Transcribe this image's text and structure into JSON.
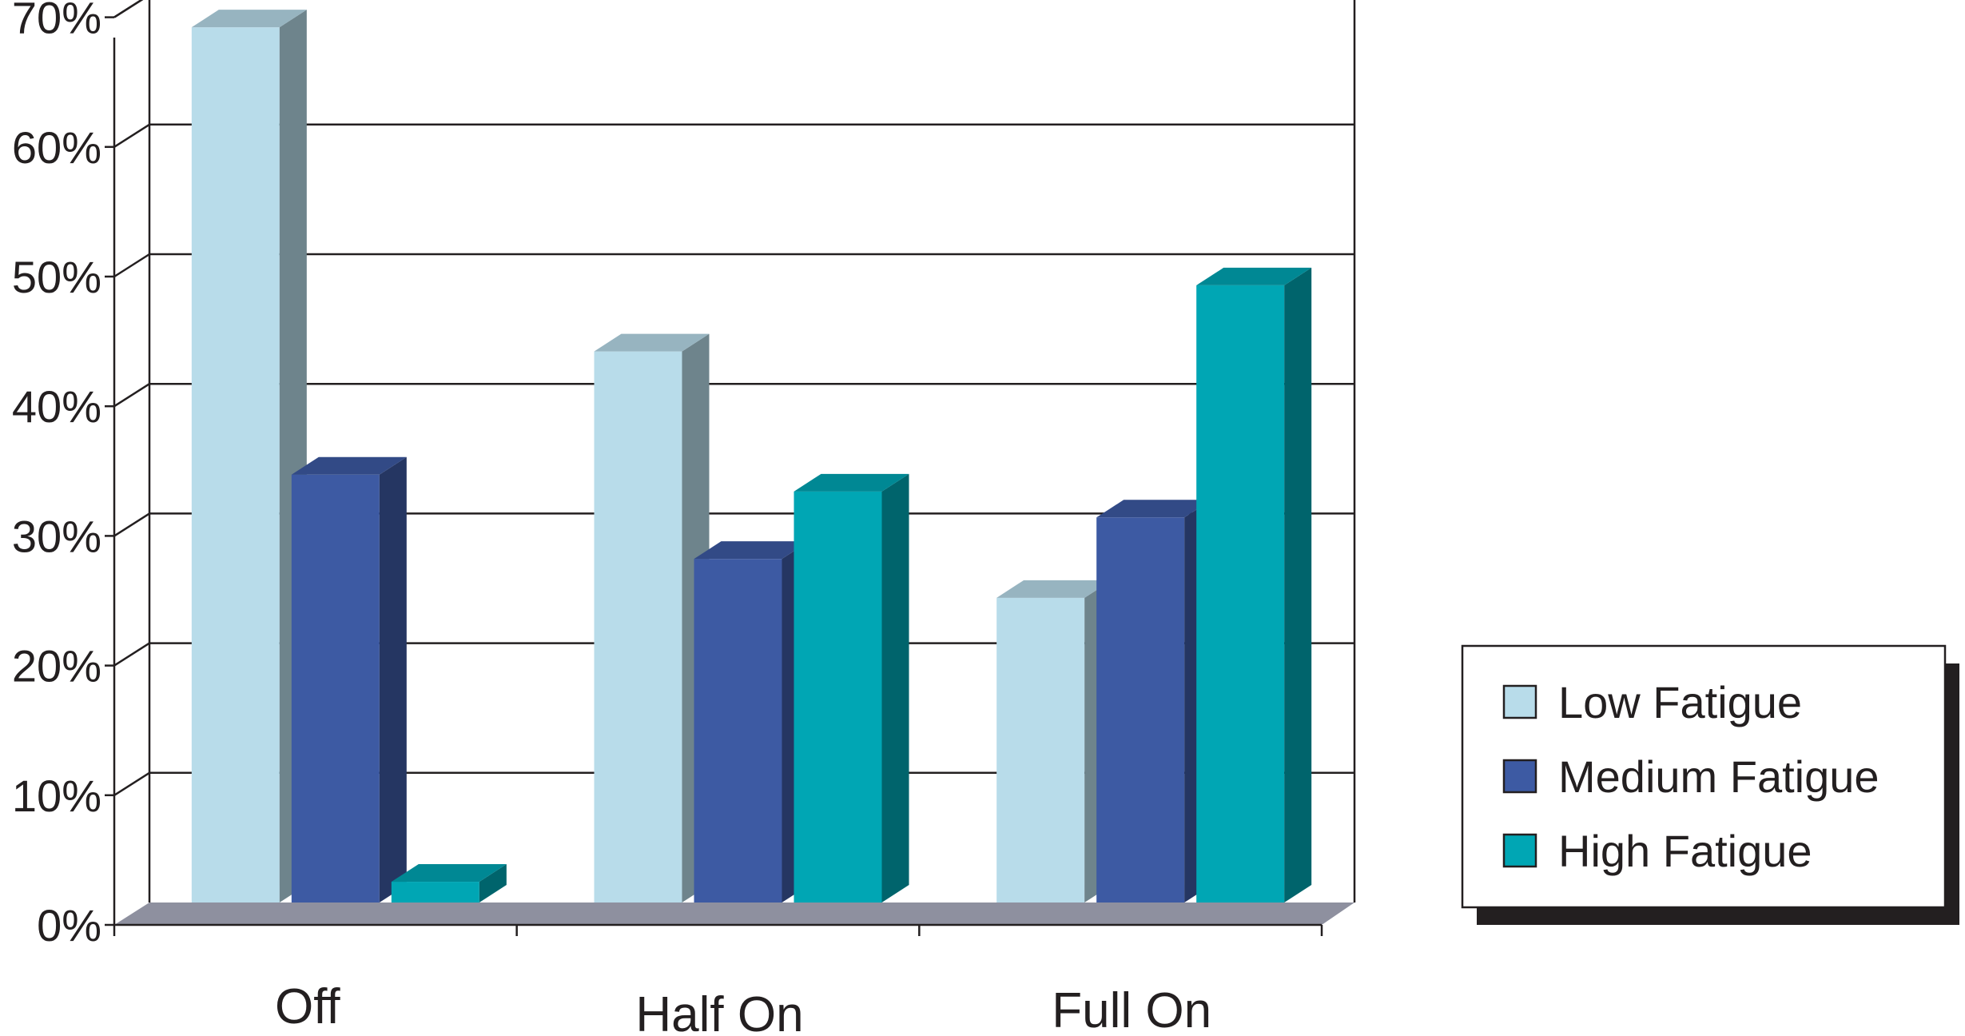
{
  "chart_data": {
    "type": "bar",
    "title": "",
    "xlabel": "",
    "ylabel": "",
    "categories": [
      "Off",
      "Half On",
      "Full On"
    ],
    "series": [
      {
        "name": "Low Fatigue",
        "values": [
          67.5,
          42.5,
          23.5
        ]
      },
      {
        "name": "Medium Fatigue",
        "values": [
          33,
          26.5,
          29.7
        ]
      },
      {
        "name": "High Fatigue",
        "values": [
          1.6,
          31.7,
          47.6
        ]
      }
    ],
    "ylim": [
      0,
      70
    ],
    "yticks": [
      "0%",
      "10%",
      "20%",
      "30%",
      "40%",
      "50%",
      "60%",
      "70%"
    ],
    "grid": true,
    "legend_position": "right",
    "style": "3d",
    "colors": {
      "Low Fatigue": "#b8dcea",
      "Medium Fatigue": "#3d5aa3",
      "High Fatigue": "#00a6b4"
    }
  }
}
